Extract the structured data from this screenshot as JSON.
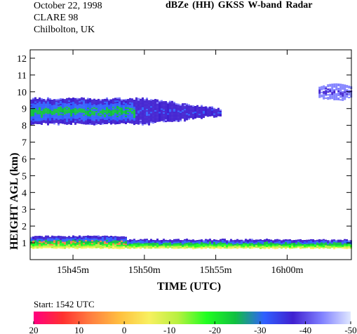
{
  "header": {
    "date": "October 22, 1998",
    "campaign": "CLARE 98",
    "site": "Chilbolton, UK",
    "product_title": "dBZe (HH)   GKSS  W-band Radar"
  },
  "start_label": "Start: 1542 UTC",
  "chart_data": {
    "type": "heatmap",
    "title": "dBZe (HH)   GKSS  W-band Radar",
    "xlabel": "TIME (UTC)",
    "ylabel": "HEIGHT AGL (km)",
    "xlim_minutes": [
      0,
      22.5
    ],
    "ylim": [
      0,
      12.5
    ],
    "x_ticks": [
      {
        "minute": 3,
        "label": "15h45m"
      },
      {
        "minute": 8,
        "label": "15h50m"
      },
      {
        "minute": 13,
        "label": "15h55m"
      },
      {
        "minute": 18,
        "label": "16h00m"
      }
    ],
    "y_ticks": [
      {
        "value": 1,
        "label": "1"
      },
      {
        "value": 2,
        "label": "2"
      },
      {
        "value": 3,
        "label": "3"
      },
      {
        "value": 4,
        "label": "4"
      },
      {
        "value": 5,
        "label": "5"
      },
      {
        "value": 6,
        "label": "6"
      },
      {
        "value": 7,
        "label": "7"
      },
      {
        "value": 8,
        "label": "8"
      },
      {
        "value": 9,
        "label": "9"
      },
      {
        "value": 10,
        "label": "10"
      },
      {
        "value": 11,
        "label": "11"
      },
      {
        "value": 12,
        "label": "12"
      }
    ],
    "echo_layers": [
      {
        "t_start": 0,
        "t_end": 13.3,
        "base_km": 8.1,
        "top_km": 9.6,
        "core_dbz": -25,
        "edge_dbz": -40
      },
      {
        "t_start": 20.2,
        "t_end": 22.5,
        "base_km": 9.5,
        "top_km": 10.5,
        "core_dbz": -40,
        "edge_dbz": -44
      },
      {
        "t_start": 0,
        "t_end": 22.5,
        "base_km": 0.7,
        "top_km": 1.4,
        "core_dbz": -5,
        "edge_dbz": -38
      }
    ],
    "colorbar": {
      "vmin": 20,
      "vmax": -50,
      "tick_labels": [
        "20",
        "10",
        "0",
        "-10",
        "-20",
        "-30",
        "-40",
        "-50"
      ],
      "colors": [
        "#ff0080",
        "#ff3030",
        "#ff8040",
        "#ffc040",
        "#f8f060",
        "#b8f040",
        "#20ff20",
        "#10c040",
        "#3060ff",
        "#4020d0",
        "#8080ff",
        "#e0e8ff"
      ]
    }
  }
}
